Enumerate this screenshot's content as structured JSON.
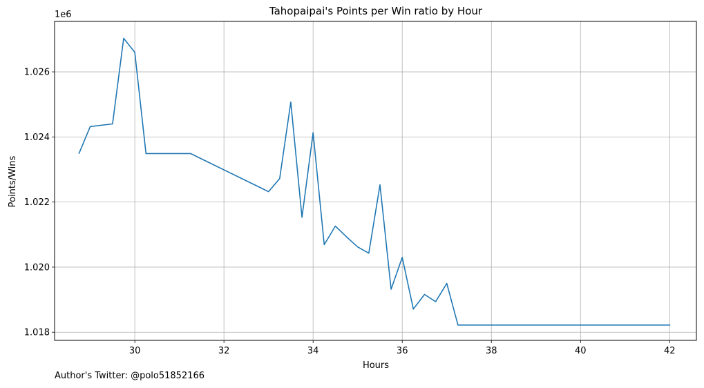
{
  "footer": {
    "credit": "Author's Twitter: @polo51852166"
  },
  "chart_data": {
    "type": "line",
    "title": "Tahopaipai's Points per Win ratio by Hour",
    "xlabel": "Hours",
    "ylabel": "Points/Wins",
    "y_offset_label": "1e6",
    "xlim": [
      28.2,
      42.6
    ],
    "ylim": [
      1.01775,
      1.02755
    ],
    "x_ticks": [
      30,
      32,
      34,
      36,
      38,
      40,
      42
    ],
    "x_tick_labels": [
      "30",
      "32",
      "34",
      "36",
      "38",
      "40",
      "42"
    ],
    "y_ticks": [
      1.018,
      1.02,
      1.022,
      1.024,
      1.026
    ],
    "y_tick_labels": [
      "1.018",
      "1.020",
      "1.022",
      "1.024",
      "1.026"
    ],
    "grid": true,
    "series": [
      {
        "color": "#1f77b4",
        "x": [
          28.75,
          29.0,
          29.5,
          29.75,
          30.0,
          30.25,
          31.25,
          33.0,
          33.25,
          33.5,
          33.75,
          34.0,
          34.25,
          34.5,
          34.75,
          35.0,
          35.25,
          35.5,
          35.75,
          36.0,
          36.25,
          36.5,
          36.75,
          37.0,
          37.25,
          42.0
        ],
        "y": [
          1.0235,
          1.02432,
          1.0244,
          1.02703,
          1.0266,
          1.02349,
          1.02349,
          1.02232,
          1.02272,
          1.02507,
          1.02153,
          1.02413,
          1.02069,
          1.02126,
          1.02093,
          1.02062,
          1.02043,
          1.02253,
          1.01932,
          1.0203,
          1.01871,
          1.01916,
          1.01894,
          1.0195,
          1.01822,
          1.01822
        ]
      }
    ]
  }
}
